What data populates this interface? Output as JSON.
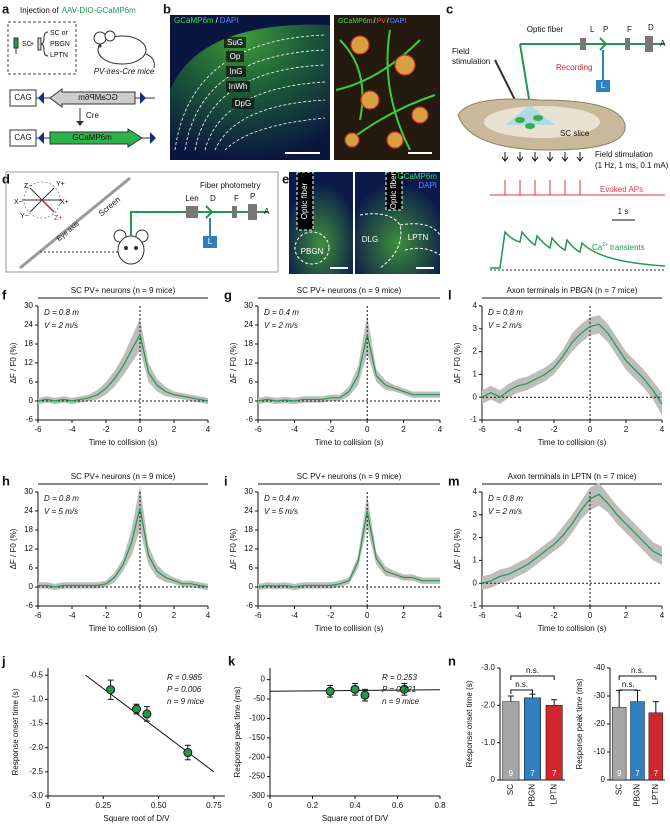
{
  "figure": {
    "panel_labels": [
      "a",
      "b",
      "c",
      "d",
      "e",
      "f",
      "g",
      "l",
      "h",
      "i",
      "m",
      "j",
      "k",
      "n"
    ],
    "a": {
      "title": "Injection of",
      "virus": "AAV-DIO-GCaMP6m",
      "site": "SC",
      "sites": [
        "SC or",
        "PBGN",
        "LPTN"
      ],
      "mice": "PV-ires-Cre mice",
      "promoter": [
        "CAG",
        "CAG"
      ],
      "gene": [
        "GCaMP6m",
        "GCaMP6m"
      ],
      "recombinase": "Cre"
    },
    "b": {
      "stain": [
        "GCaMP6m",
        "/",
        "DAPI"
      ],
      "layers": [
        "SuG",
        "Op",
        "InG",
        "InWh",
        "DpG"
      ],
      "stain_right": [
        "GCaMP6m",
        "/",
        "PV",
        "/",
        "DAPI"
      ]
    },
    "c": {
      "fiber": "Optic fiber",
      "parts": [
        "L",
        "P",
        "F",
        "D",
        "A"
      ],
      "stimulation": [
        "Field",
        "stimulation"
      ],
      "recording": "Recording",
      "led": "L",
      "slice": "SC slice",
      "protocol": [
        "Field stimulation",
        "(1 Hz, 1 ms, 0.1 mA)"
      ],
      "aps": "Evoked APs",
      "scale": "1 s",
      "calcium": [
        "Ca",
        "2+",
        "transients"
      ]
    },
    "d": {
      "axes": [
        "Z−",
        "Y+",
        "X−",
        "X+",
        "Y−",
        "Z+"
      ],
      "screen": "Screen",
      "eye_axis": "Eye axis",
      "setup": "Fiber photometry",
      "parts": [
        "Len",
        "D",
        "F",
        "P",
        "A"
      ],
      "led": "L"
    },
    "e": {
      "stain": [
        "GCaMP6m",
        "DAPI"
      ],
      "fiber": [
        "Optic fiber",
        "Optic fiber"
      ],
      "regions": [
        "PBGN",
        "DLG",
        "LPTN"
      ]
    }
  },
  "chart_data": [
    {
      "type": "line",
      "title": "SC PV+ neurons (n = 9 mice)",
      "annotations": [
        "D = 0.8 m",
        "V = 2 m/s"
      ],
      "xlabel": "Time to collision (s)",
      "ylabel": "ΔF / F0 (%)",
      "x": [
        -6,
        -5.5,
        -5,
        -4.5,
        -4,
        -3.5,
        -3,
        -2.5,
        -2,
        -1.5,
        -1,
        -0.5,
        0,
        0.5,
        1,
        1.5,
        2,
        2.5,
        3,
        3.5,
        4
      ],
      "series": [
        {
          "color": "#1f9a4c",
          "band_color": "#bdbdbd",
          "values": [
            0,
            0.5,
            0,
            0.5,
            0,
            0.5,
            1,
            2,
            4,
            7,
            11,
            16,
            21,
            9,
            5,
            3,
            2,
            1.5,
            1,
            0.5,
            0
          ],
          "errors": [
            1,
            1,
            1,
            1,
            1,
            1,
            1,
            1.5,
            2,
            2.5,
            3,
            4,
            5,
            3,
            2,
            1.5,
            1,
            1,
            1,
            1,
            1
          ]
        }
      ],
      "xlim": [
        -6,
        4
      ],
      "xticks": [
        -6,
        -4,
        -2,
        0,
        2,
        4
      ],
      "ylim": [
        -6,
        30
      ],
      "yticks": [
        -6,
        0,
        6,
        12,
        18,
        24,
        30
      ]
    },
    {
      "type": "line",
      "title": "SC PV+ neurons (n = 9 mice)",
      "annotations": [
        "D = 0.4 m",
        "V = 2 m/s"
      ],
      "xlabel": "Time to collision (s)",
      "ylabel": "ΔF / F0 (%)",
      "x": [
        -6,
        -5.5,
        -5,
        -4.5,
        -4,
        -3.5,
        -3,
        -2.5,
        -2,
        -1.5,
        -1,
        -0.5,
        0,
        0.5,
        1,
        1.5,
        2,
        2.5,
        3,
        3.5,
        4
      ],
      "series": [
        {
          "color": "#1f9a4c",
          "band_color": "#bdbdbd",
          "values": [
            0,
            0.5,
            0,
            0.3,
            0,
            0.5,
            0.5,
            0.5,
            1,
            1,
            3,
            8,
            21,
            8,
            5,
            4,
            3,
            2,
            2,
            2,
            2
          ],
          "errors": [
            1,
            1,
            1,
            1,
            1,
            1,
            1,
            1,
            1,
            1,
            1.5,
            3,
            6,
            2,
            1.5,
            1,
            1,
            1,
            1,
            1,
            1
          ]
        }
      ],
      "xlim": [
        -6,
        4
      ],
      "xticks": [
        -6,
        -4,
        -2,
        0,
        2,
        4
      ],
      "ylim": [
        -6,
        30
      ],
      "yticks": [
        -6,
        0,
        6,
        12,
        18,
        24,
        30
      ]
    },
    {
      "type": "line",
      "title": "Axon terminals in PBGN (n = 7 mice)",
      "annotations": [
        "D = 0.8 m",
        "V = 2 m/s"
      ],
      "xlabel": "Time to collision (s)",
      "ylabel": "ΔF / F0 (%)",
      "x": [
        -6,
        -5.5,
        -5,
        -4.5,
        -4,
        -3.5,
        -3,
        -2.5,
        -2,
        -1.5,
        -1,
        -0.5,
        0,
        0.5,
        1,
        1.5,
        2,
        2.5,
        3,
        3.5,
        4
      ],
      "series": [
        {
          "color": "#1f9a4c",
          "band_color": "#bdbdbd",
          "values": [
            0,
            0.2,
            0,
            0.3,
            0.5,
            0.6,
            0.8,
            1,
            1.3,
            1.8,
            2.4,
            2.8,
            3.1,
            3.2,
            2.8,
            2.2,
            1.6,
            1.2,
            0.8,
            0.3,
            -0.3
          ],
          "errors": [
            0.3,
            0.3,
            0.3,
            0.3,
            0.3,
            0.3,
            0.3,
            0.3,
            0.3,
            0.3,
            0.4,
            0.4,
            0.4,
            0.4,
            0.4,
            0.4,
            0.4,
            0.4,
            0.4,
            0.4,
            0.5
          ]
        }
      ],
      "xlim": [
        -6,
        4
      ],
      "xticks": [
        -6,
        -4,
        -2,
        0,
        2,
        4
      ],
      "ylim": [
        -1,
        4
      ],
      "yticks": [
        -1,
        0,
        1,
        2,
        3,
        4
      ]
    },
    {
      "type": "line",
      "title": "SC PV+ neurons (n = 9 mice)",
      "annotations": [
        "D = 0.8 m",
        "V = 5 m/s"
      ],
      "xlabel": "Time to collision (s)",
      "ylabel": "ΔF / F0 (%)",
      "x": [
        -6,
        -5.5,
        -5,
        -4.5,
        -4,
        -3.5,
        -3,
        -2.5,
        -2,
        -1.5,
        -1,
        -0.5,
        0,
        0.5,
        1,
        1.5,
        2,
        2.5,
        3,
        3.5,
        4
      ],
      "series": [
        {
          "color": "#1f9a4c",
          "band_color": "#bdbdbd",
          "values": [
            0.5,
            0.5,
            0,
            0.5,
            0.5,
            0.5,
            0.5,
            0.5,
            1,
            3,
            7,
            14,
            25,
            10,
            5,
            3,
            2,
            1,
            1,
            0.5,
            0
          ],
          "errors": [
            1,
            1,
            1,
            1,
            1,
            1,
            1,
            1,
            1,
            1.5,
            2,
            4,
            7,
            3,
            2,
            1.5,
            1,
            1,
            1,
            1,
            1
          ]
        }
      ],
      "xlim": [
        -6,
        4
      ],
      "xticks": [
        -6,
        -4,
        -2,
        0,
        2,
        4
      ],
      "ylim": [
        -6,
        30
      ],
      "yticks": [
        -6,
        0,
        6,
        12,
        18,
        24,
        30
      ]
    },
    {
      "type": "line",
      "title": "SC PV+ neurons (n = 9 mice)",
      "annotations": [
        "D = 0.4 m",
        "V = 5 m/s"
      ],
      "xlabel": "Time to collision (s)",
      "ylabel": "ΔF / F0 (%)",
      "x": [
        -6,
        -5.5,
        -5,
        -4.5,
        -4,
        -3.5,
        -3,
        -2.5,
        -2,
        -1.5,
        -1,
        -0.5,
        0,
        0.5,
        1,
        1.5,
        2,
        2.5,
        3,
        3.5,
        4
      ],
      "series": [
        {
          "color": "#1f9a4c",
          "band_color": "#bdbdbd",
          "values": [
            0,
            0.5,
            0.3,
            0.5,
            0,
            0.5,
            0.5,
            0.5,
            0.5,
            1,
            2,
            8,
            24,
            9,
            5,
            4,
            3,
            3,
            2,
            2,
            2
          ],
          "errors": [
            1,
            1,
            1,
            1,
            1,
            1,
            1,
            1,
            1,
            1,
            1,
            2,
            5,
            2,
            1.5,
            1,
            1,
            1,
            1,
            1,
            1
          ]
        }
      ],
      "xlim": [
        -6,
        4
      ],
      "xticks": [
        -6,
        -4,
        -2,
        0,
        2,
        4
      ],
      "ylim": [
        -6,
        30
      ],
      "yticks": [
        -6,
        0,
        6,
        12,
        18,
        24,
        30
      ]
    },
    {
      "type": "line",
      "title": "Axon terminals in LPTN (n = 7 mice)",
      "annotations": [
        "D = 0.8 m",
        "V = 2 m/s"
      ],
      "xlabel": "Time to collision (s)",
      "ylabel": "ΔF / F0 (%)",
      "x": [
        -6,
        -5.5,
        -5,
        -4.5,
        -4,
        -3.5,
        -3,
        -2.5,
        -2,
        -1.5,
        -1,
        -0.5,
        0,
        0.5,
        1,
        1.5,
        2,
        2.5,
        3,
        3.5,
        4
      ],
      "series": [
        {
          "color": "#1f9a4c",
          "band_color": "#bdbdbd",
          "values": [
            0,
            0.1,
            0.3,
            0.4,
            0.6,
            0.8,
            1.1,
            1.4,
            1.7,
            2.1,
            2.6,
            3.2,
            3.7,
            3.9,
            3.5,
            3,
            2.6,
            2.2,
            1.8,
            1.4,
            1.2
          ],
          "errors": [
            0.3,
            0.3,
            0.3,
            0.3,
            0.3,
            0.3,
            0.3,
            0.3,
            0.3,
            0.4,
            0.4,
            0.4,
            0.5,
            0.5,
            0.4,
            0.4,
            0.4,
            0.4,
            0.4,
            0.4,
            0.4
          ]
        }
      ],
      "xlim": [
        -6,
        4
      ],
      "xticks": [
        -6,
        -4,
        -2,
        0,
        2,
        4
      ],
      "ylim": [
        -1,
        4
      ],
      "yticks": [
        -1,
        0,
        1,
        2,
        3,
        4
      ]
    },
    {
      "type": "scatter",
      "annotations": [
        "R = 0.985",
        "P = 0.006",
        "n = 9 mice"
      ],
      "xlabel": "Square root of D/V",
      "ylabel": "Response onset time (s)",
      "color": "#1f9a4c",
      "x": [
        0.283,
        0.4,
        0.447,
        0.632
      ],
      "values": [
        -0.8,
        -1.2,
        -1.3,
        -2.1
      ],
      "errors": [
        0.2,
        0.1,
        0.15,
        0.15
      ],
      "fit": {
        "x": [
          0.17,
          0.75
        ],
        "y": [
          -0.5,
          -2.5
        ]
      },
      "xlim": [
        0,
        0.8
      ],
      "xticks": [
        0,
        0.25,
        {
          "value": 0.5,
          "label": "0.50"
        },
        0.75
      ],
      "ylim": [
        -3,
        -0.35
      ],
      "yticks": [
        -0.5,
        {
          "value": -1,
          "label": "-1.0"
        },
        -1.5,
        {
          "value": -2,
          "label": "-2.0"
        },
        -2.5,
        {
          "value": -3,
          "label": "-3.0"
        }
      ]
    },
    {
      "type": "scatter",
      "annotations": [
        "R = 0.253",
        "P = 0.721",
        "n = 9 mice"
      ],
      "xlabel": "Square root of D/V",
      "ylabel": "Response peak time (ms)",
      "color": "#1f9a4c",
      "x": [
        0.283,
        0.4,
        0.447,
        0.632
      ],
      "values": [
        -30,
        -25,
        -40,
        -25
      ],
      "errors": [
        15,
        15,
        15,
        15
      ],
      "fit": {
        "x": [
          0,
          0.8
        ],
        "y": [
          -30,
          -26
        ]
      },
      "xlim": [
        0,
        0.8
      ],
      "xticks": [
        0,
        0.2,
        0.4,
        0.6,
        0.8
      ],
      "ylim": [
        -300,
        30
      ],
      "yticks": [
        0,
        -50,
        -100,
        -150,
        -200,
        -250,
        -300
      ]
    },
    {
      "type": "bar",
      "ylabel": "Response onset time (s)",
      "categories": [
        "SC",
        "PBGN",
        "LPTN"
      ],
      "colors": [
        "#a6a6a6",
        "#2f7fc1",
        "#d1262c"
      ],
      "values": [
        -2.1,
        -2.2,
        -2.0
      ],
      "errors": [
        0.15,
        0.1,
        0.15
      ],
      "counts": [
        9,
        7,
        7
      ],
      "annotations": [
        "n.s.",
        "n.s."
      ],
      "ylim": [
        0,
        -3
      ],
      "yticks": [
        0,
        {
          "value": -1,
          "label": "-1.0"
        },
        {
          "value": -2,
          "label": "-2.0"
        },
        {
          "value": -3,
          "label": "-3.0"
        }
      ]
    },
    {
      "type": "bar",
      "ylabel": "Response peak time (ms)",
      "categories": [
        "SC",
        "PBGN",
        "LPTN"
      ],
      "colors": [
        "#a6a6a6",
        "#2f7fc1",
        "#d1262c"
      ],
      "values": [
        -26,
        -28,
        -24
      ],
      "errors": [
        6,
        4,
        4
      ],
      "counts": [
        9,
        7,
        7
      ],
      "annotations": [
        "n.s.",
        "n.s."
      ],
      "ylim": [
        0,
        -40
      ],
      "yticks": [
        0,
        -10,
        -20,
        -30,
        -40
      ]
    }
  ]
}
